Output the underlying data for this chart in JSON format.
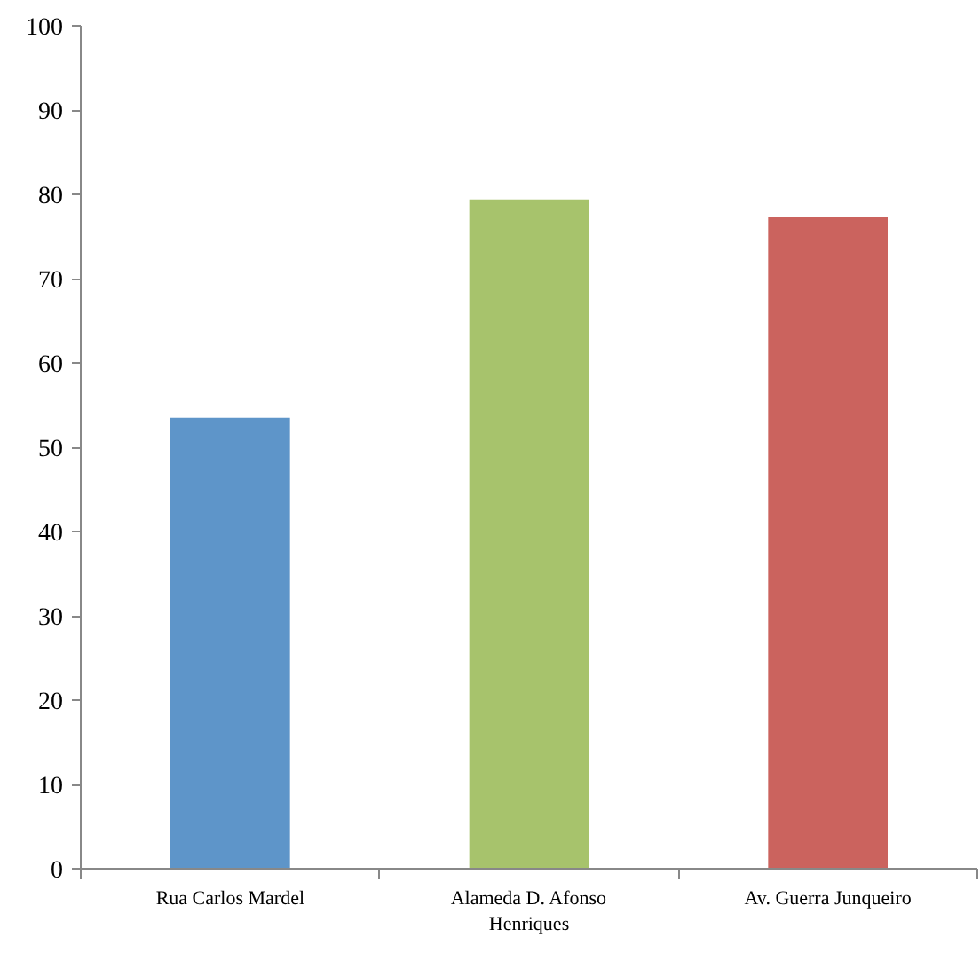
{
  "chart_data": {
    "type": "bar",
    "categories": [
      "Rua Carlos Mardel",
      "Alameda D. Afonso Henriques",
      "Av. Guerra Junqueiro"
    ],
    "values": [
      53.5,
      79.4,
      77.3
    ],
    "colors": [
      "#5e95c9",
      "#a7c36c",
      "#cb635e"
    ],
    "ylim": [
      0,
      100
    ],
    "yticks": [
      0,
      10,
      20,
      30,
      40,
      50,
      60,
      70,
      80,
      90,
      100
    ],
    "grid": false
  }
}
